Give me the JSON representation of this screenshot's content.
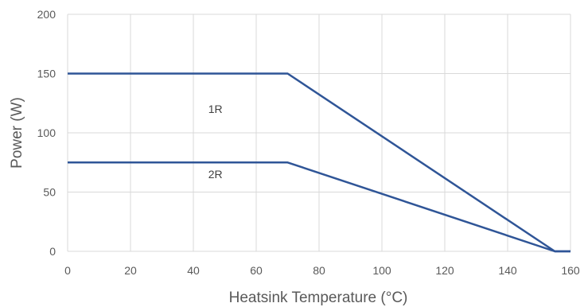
{
  "chart_data": {
    "type": "line",
    "title": "",
    "xlabel": "Heatsink Temperature (°C)",
    "ylabel": "Power (W)",
    "xlim": [
      0,
      160
    ],
    "ylim": [
      0,
      200
    ],
    "x_ticks": [
      0,
      20,
      40,
      60,
      80,
      100,
      120,
      140,
      160
    ],
    "y_ticks": [
      0,
      50,
      100,
      150,
      200
    ],
    "grid": true,
    "line_color": "#2f5597",
    "grid_color": "#d9d9d9",
    "series": [
      {
        "name": "1R",
        "x": [
          0,
          70,
          155,
          160
        ],
        "y": [
          150,
          150,
          0,
          0
        ],
        "label_at": [
          47,
          120
        ]
      },
      {
        "name": "2R",
        "x": [
          0,
          70,
          155,
          160
        ],
        "y": [
          75,
          75,
          0,
          0
        ],
        "label_at": [
          47,
          65
        ]
      }
    ]
  }
}
